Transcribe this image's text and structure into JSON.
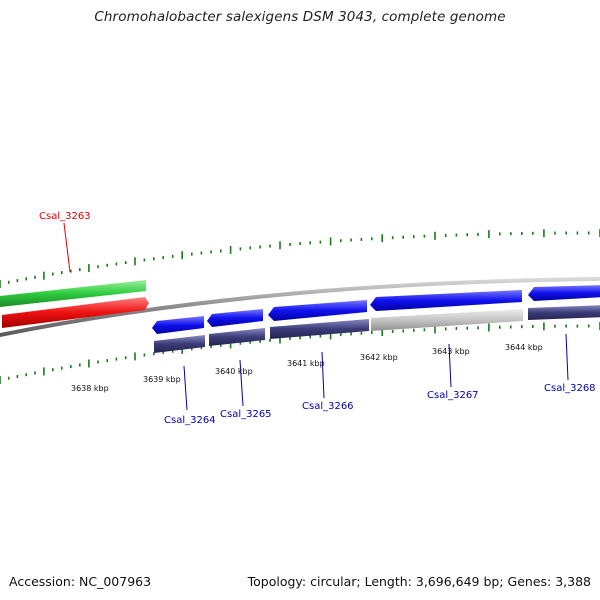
{
  "title": "Chromohalobacter salexigens DSM 3043, complete genome",
  "footer": {
    "accession_text": "Accession: NC_007963",
    "summary_text": "Topology: circular; Length: 3,696,649 bp; Genes: 3,388"
  },
  "colors": {
    "forward_cds": "#2ecc40",
    "forward_rna": "#ee1111",
    "reverse_cds": "#1111ee",
    "reverse_gene": "#3b3b7a",
    "pseudo": "#b8b8b8",
    "backbone": "#888888",
    "tick": "#1a7a1a",
    "label_forward": "#dd0000",
    "label_reverse": "#0000aa"
  },
  "ruler": {
    "unit": "kbp",
    "labels": [
      "3638 kbp",
      "3639 kbp",
      "3640 kbp",
      "3641 kbp",
      "3642 kbp",
      "3643 kbp",
      "3644 kbp"
    ]
  },
  "genes": [
    {
      "locus": "Csal_3263",
      "strand": "+",
      "label_color": "#dd0000"
    },
    {
      "locus": "Csal_3264",
      "strand": "-",
      "label_color": "#0000aa"
    },
    {
      "locus": "Csal_3265",
      "strand": "-",
      "label_color": "#0000aa"
    },
    {
      "locus": "Csal_3266",
      "strand": "-",
      "label_color": "#0000aa"
    },
    {
      "locus": "Csal_3267",
      "strand": "-",
      "label_color": "#0000aa",
      "pseudo": true
    },
    {
      "locus": "Csal_3268",
      "strand": "-",
      "label_color": "#0000aa"
    }
  ]
}
